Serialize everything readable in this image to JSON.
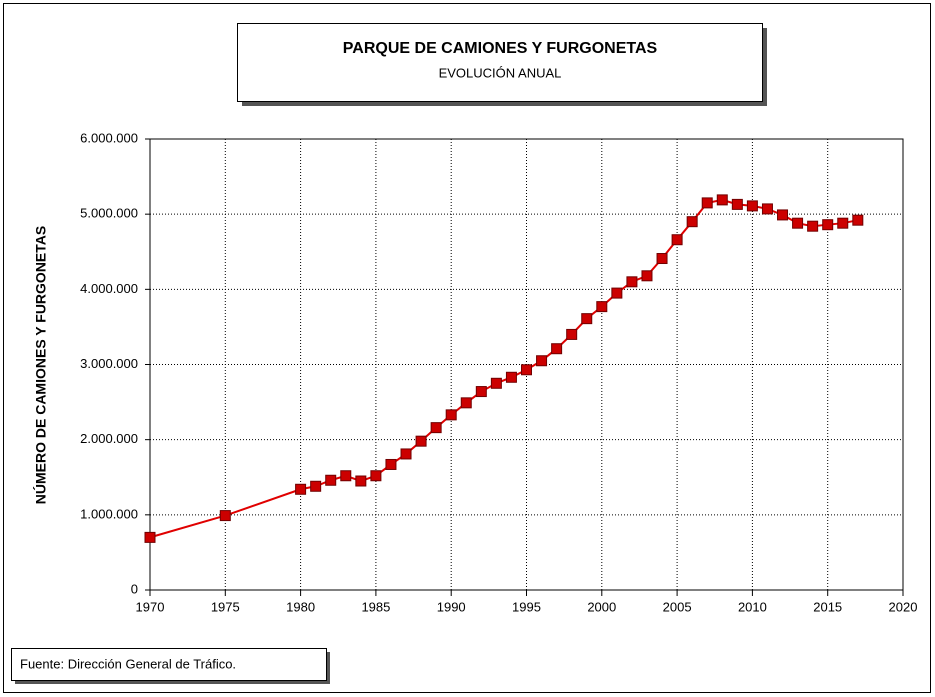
{
  "chart_data": {
    "type": "line",
    "title": "PARQUE DE CAMIONES Y FURGONETAS",
    "subtitle": "EVOLUCIÓN ANUAL",
    "ylabel": "NÚMERO DE CAMIONES Y FURGONETAS",
    "source": "Fuente: Dirección General de Tráfico.",
    "x": [
      1970,
      1975,
      1980,
      1981,
      1982,
      1983,
      1984,
      1985,
      1986,
      1987,
      1988,
      1989,
      1990,
      1991,
      1992,
      1993,
      1994,
      1995,
      1996,
      1997,
      1998,
      1999,
      2000,
      2001,
      2002,
      2003,
      2004,
      2005,
      2006,
      2007,
      2008,
      2009,
      2010,
      2011,
      2012,
      2013,
      2014,
      2015,
      2016,
      2017
    ],
    "series": [
      {
        "color": "#e00000",
        "marker_color": "#cc0000",
        "marker_edge": "#700000",
        "values": [
          700000,
          990000,
          1340000,
          1380000,
          1460000,
          1520000,
          1450000,
          1520000,
          1670000,
          1810000,
          1980000,
          2160000,
          2330000,
          2490000,
          2640000,
          2750000,
          2830000,
          2930000,
          3050000,
          3210000,
          3400000,
          3610000,
          3770000,
          3950000,
          4100000,
          4180000,
          4410000,
          4660000,
          4900000,
          5150000,
          5190000,
          5130000,
          5110000,
          5070000,
          4990000,
          4880000,
          4840000,
          4860000,
          4880000,
          4920000
        ]
      }
    ],
    "xlim": [
      1970,
      2020
    ],
    "xticks": [
      1970,
      1975,
      1980,
      1985,
      1990,
      1995,
      2000,
      2005,
      2010,
      2015,
      2020
    ],
    "ylim": [
      0,
      6000000
    ],
    "yticks": [
      0,
      {
        "value": 1000000,
        "label": "1.000.000"
      },
      {
        "value": 2000000,
        "label": "2.000.000"
      },
      {
        "value": 3000000,
        "label": "3.000.000"
      },
      {
        "value": 4000000,
        "label": "4.000.000"
      },
      {
        "value": 5000000,
        "label": "5.000.000"
      },
      {
        "value": 6000000,
        "label": "6.000.000"
      }
    ],
    "grid": true
  }
}
